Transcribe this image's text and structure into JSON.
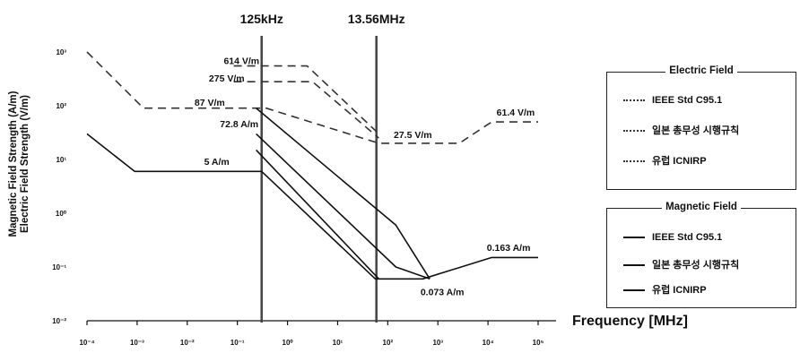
{
  "chart_data": {
    "type": "line",
    "title": "",
    "xlabel": "Frequency [MHz]",
    "ylabel": [
      "Magnetic Field Strength (A/m)",
      "Electric Field Strength (V/m)"
    ],
    "x_scale": "log",
    "y_scale": "log",
    "xlim": [
      0.0001,
      10000
    ],
    "ylim": [
      0.01,
      1000
    ],
    "x_tick_labels": [
      "10⁻⁴",
      "10⁻³",
      "10⁻²",
      "10⁻¹",
      "10⁰",
      "10¹",
      "10²",
      "10³",
      "10⁴",
      "10⁵"
    ],
    "y_tick_labels": [
      "10³",
      "10²",
      "10¹",
      "10⁰",
      "10⁻¹",
      "10⁻²"
    ],
    "markers": [
      {
        "label": "125kHz",
        "x": 0.125
      },
      {
        "label": "13.56MHz",
        "x": 13.56
      }
    ],
    "series": [
      {
        "group": "Electric Field",
        "style": "dashed",
        "points": [
          [
            0.0001,
            1000
          ],
          [
            0.001,
            90
          ],
          [
            0.02,
            90
          ],
          [
            0.15,
            90
          ],
          [
            15,
            20
          ],
          [
            400,
            20
          ],
          [
            1500,
            50
          ],
          [
            10000,
            50
          ]
        ]
      },
      {
        "group": "Electric Field",
        "style": "dashed",
        "points": [
          [
            0.04,
            280
          ],
          [
            1,
            280
          ],
          [
            15,
            25
          ]
        ]
      },
      {
        "group": "Electric Field",
        "style": "dashed",
        "points": [
          [
            0.04,
            550
          ],
          [
            0.8,
            550
          ],
          [
            15,
            30
          ]
        ]
      },
      {
        "group": "Magnetic Field",
        "style": "solid",
        "points": [
          [
            0.0001,
            30
          ],
          [
            0.0007,
            6
          ],
          [
            0.125,
            6
          ],
          [
            13,
            0.06
          ],
          [
            90,
            0.06
          ],
          [
            1500,
            0.15
          ],
          [
            10000,
            0.15
          ]
        ]
      },
      {
        "group": "Magnetic Field",
        "style": "solid",
        "points": [
          [
            0.1,
            15
          ],
          [
            15,
            0.06
          ]
        ]
      },
      {
        "group": "Magnetic Field",
        "style": "solid",
        "points": [
          [
            0.1,
            30
          ],
          [
            30,
            0.1
          ],
          [
            120,
            0.06
          ]
        ]
      },
      {
        "group": "Magnetic Field",
        "style": "solid",
        "points": [
          [
            0.1,
            90
          ],
          [
            30,
            0.6
          ],
          [
            120,
            0.06
          ]
        ]
      }
    ],
    "annotations": [
      {
        "text": "614 V/m",
        "x": 0.055,
        "y": 600
      },
      {
        "text": "275 V/m",
        "x": 0.03,
        "y": 280
      },
      {
        "text": "87 V/m",
        "x": 0.015,
        "y": 100
      },
      {
        "text": "72.8 A/m",
        "x": 0.05,
        "y": 40
      },
      {
        "text": "5 A/m",
        "x": 0.02,
        "y": 8
      },
      {
        "text": "27.5 V/m",
        "x": 60,
        "y": 25
      },
      {
        "text": "61.4 V/m",
        "x": 4000,
        "y": 65
      },
      {
        "text": "0.163 A/m",
        "x": 3000,
        "y": 0.2
      },
      {
        "text": "0.073 A/m",
        "x": 200,
        "y": 0.03
      }
    ],
    "legend": {
      "placement": "right",
      "groups": [
        {
          "title": "Electric Field",
          "style": "dashed",
          "entries": [
            "IEEE Std C95.1",
            "일본 총무성 시행규칙",
            "유럽 ICNIRP"
          ]
        },
        {
          "title": "Magnetic Field",
          "style": "solid",
          "entries": [
            "IEEE Std C95.1",
            "일본 총무성 시행규칙",
            "유럽 ICNIRP"
          ]
        }
      ]
    }
  }
}
